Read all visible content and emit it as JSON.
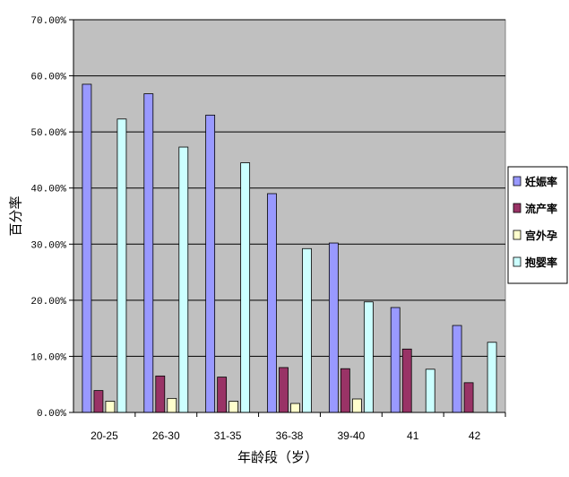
{
  "chart_data": {
    "type": "bar",
    "xlabel": "年龄段（岁）",
    "ylabel": "百分率",
    "ylim": [
      0,
      70
    ],
    "yticks": [
      "0.00%",
      "10.00%",
      "20.00%",
      "30.00%",
      "40.00%",
      "50.00%",
      "60.00%",
      "70.00%"
    ],
    "grid": true,
    "legend_position": "right",
    "categories": [
      "20-25",
      "26-30",
      "31-35",
      "36-38",
      "39-40",
      "41",
      "42"
    ],
    "series": [
      {
        "name": "妊娠率",
        "color": "#9999ff",
        "values": [
          58.5,
          56.8,
          53.0,
          39.0,
          30.2,
          18.7,
          15.5
        ]
      },
      {
        "name": "流产率",
        "color": "#993366",
        "values": [
          3.9,
          6.5,
          6.3,
          8.0,
          7.8,
          11.3,
          5.3
        ]
      },
      {
        "name": "宫外孕",
        "color": "#ffffcc",
        "values": [
          2.0,
          2.5,
          2.0,
          1.6,
          2.4,
          0,
          0
        ]
      },
      {
        "name": "抱婴率",
        "color": "#ccffff",
        "values": [
          52.3,
          47.3,
          44.5,
          29.2,
          19.7,
          7.7,
          12.5
        ]
      }
    ],
    "plot_background": "#c0c0c0"
  }
}
